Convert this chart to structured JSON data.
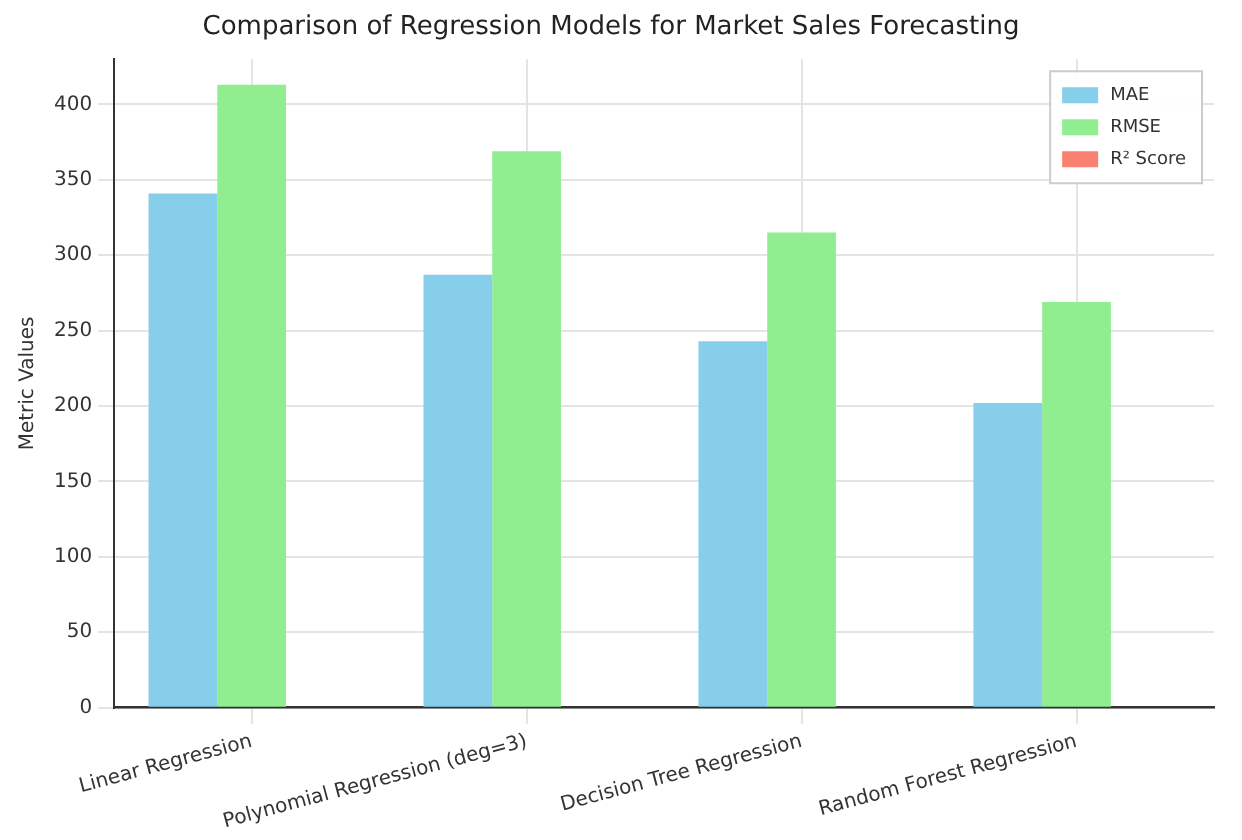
{
  "chart_data": {
    "type": "bar",
    "title": "Comparison of Regression Models for Market Sales Forecasting",
    "ylabel": "Metric Values",
    "categories": [
      "Linear Regression",
      "Polynomial Regression (deg=3)",
      "Decision Tree Regression",
      "Random Forest Regression"
    ],
    "series": [
      {
        "name": "MAE",
        "color": "#87ceeb",
        "values": [
          341,
          287,
          243,
          202
        ]
      },
      {
        "name": "RMSE",
        "color": "#90ee90",
        "values": [
          413,
          369,
          315,
          269
        ]
      },
      {
        "name": "R² Score",
        "color": "#fa8072",
        "values": [
          null,
          null,
          null,
          null
        ]
      }
    ],
    "ylim": [
      0,
      430
    ],
    "yticks": [
      0,
      50,
      100,
      150,
      200,
      250,
      300,
      350,
      400
    ],
    "grid": true,
    "legend": "top right"
  }
}
